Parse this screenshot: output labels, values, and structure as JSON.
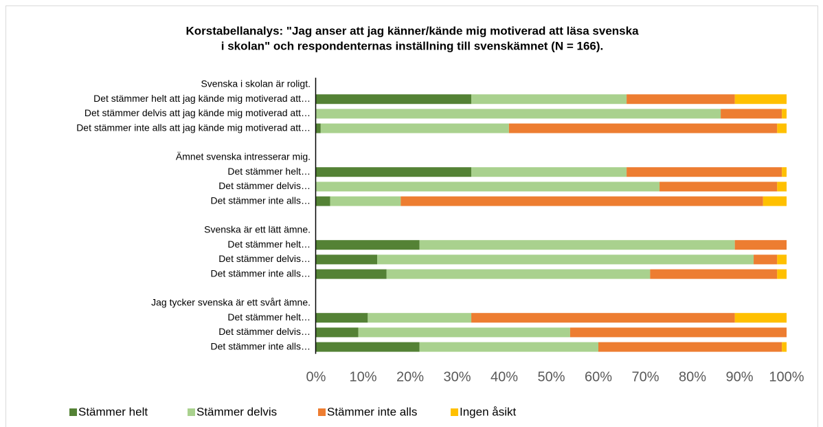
{
  "chart_data": {
    "type": "stacked_barh",
    "title": [
      "Korstabellanalys: \"Jag anser att jag känner/kände mig motiverad att läsa svenska",
      "i skolan\" och respondenternas inställning till svenskämnet (N = 166)."
    ],
    "categories": [
      "Svenska i skolan är roligt.",
      "Det stämmer helt att jag kände mig motiverad att…",
      "Det stämmer delvis att jag kände mig motiverad att…",
      "Det stämmer inte alls att jag kände mig motiverad att…",
      null,
      "Ämnet svenska intresserar mig.",
      "Det stämmer helt…",
      "Det stämmer delvis…",
      "Det stämmer inte alls…",
      null,
      "Svenska är ett lätt ämne.",
      "Det stämmer helt…",
      "Det stämmer delvis…",
      "Det stämmer inte alls…",
      null,
      "Jag tycker svenska är ett svårt ämne.",
      "Det stämmer helt…",
      "Det stämmer delvis…",
      "Det stämmer inte alls…"
    ],
    "series": [
      {
        "name": "Stämmer helt",
        "color": "#548235",
        "values": [
          null,
          33,
          0,
          1,
          null,
          null,
          33,
          0,
          3,
          null,
          null,
          22,
          13,
          15,
          null,
          null,
          11,
          9,
          22
        ]
      },
      {
        "name": "Stämmer delvis",
        "color": "#a9d18e",
        "values": [
          null,
          33,
          86,
          40,
          null,
          null,
          33,
          73,
          15,
          null,
          null,
          67,
          80,
          56,
          null,
          null,
          22,
          45,
          38
        ]
      },
      {
        "name": "Stämmer inte alls",
        "color": "#ed7d31",
        "values": [
          null,
          23,
          13,
          57,
          null,
          null,
          33,
          25,
          77,
          null,
          null,
          11,
          5,
          27,
          null,
          null,
          56,
          46,
          39
        ]
      },
      {
        "name": "Ingen åsikt",
        "color": "#ffc000",
        "values": [
          null,
          11,
          1,
          2,
          null,
          null,
          1,
          2,
          5,
          null,
          null,
          0,
          2,
          2,
          null,
          null,
          11,
          0,
          1
        ]
      }
    ],
    "xlim": [
      0,
      100
    ],
    "xticks": [
      {
        "value": 0,
        "label": "0%"
      },
      {
        "value": 10,
        "label": "10%"
      },
      {
        "value": 20,
        "label": "20%"
      },
      {
        "value": 30,
        "label": "30%"
      },
      {
        "value": 40,
        "label": "40%"
      },
      {
        "value": 50,
        "label": "50%"
      },
      {
        "value": 60,
        "label": "60%"
      },
      {
        "value": 70,
        "label": "70%"
      },
      {
        "value": 80,
        "label": "80%"
      },
      {
        "value": 90,
        "label": "90%"
      },
      {
        "value": 100,
        "label": "100%"
      }
    ],
    "legend": "bottom"
  }
}
